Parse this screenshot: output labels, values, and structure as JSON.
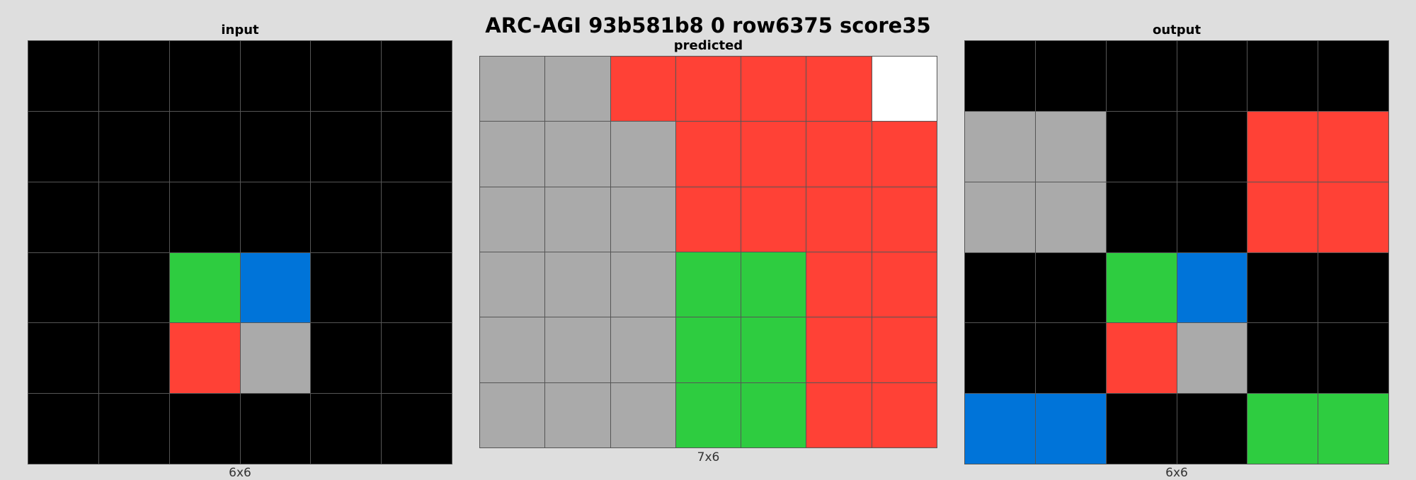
{
  "title": "ARC-AGI 93b581b8 0 row6375 score35",
  "palette": {
    "0": "#000000",
    "1": "#0074D9",
    "2": "#FF4136",
    "3": "#2ECC40",
    "4": "#FFDC00",
    "5": "#AAAAAA",
    "6": "#F012BE",
    "7": "#FF851B",
    "8": "#7FDBFF",
    "9": "#870C25",
    "w": "#FFFFFF"
  },
  "panels": {
    "input": {
      "title": "input",
      "dims": "6x6",
      "grid": [
        [
          "0",
          "0",
          "0",
          "0",
          "0",
          "0"
        ],
        [
          "0",
          "0",
          "0",
          "0",
          "0",
          "0"
        ],
        [
          "0",
          "0",
          "0",
          "0",
          "0",
          "0"
        ],
        [
          "0",
          "0",
          "3",
          "1",
          "0",
          "0"
        ],
        [
          "0",
          "0",
          "2",
          "5",
          "0",
          "0"
        ],
        [
          "0",
          "0",
          "0",
          "0",
          "0",
          "0"
        ]
      ]
    },
    "predicted": {
      "title": "predicted",
      "dims": "7x6",
      "grid": [
        [
          "5",
          "5",
          "2",
          "2",
          "2",
          "2",
          "w"
        ],
        [
          "5",
          "5",
          "5",
          "2",
          "2",
          "2",
          "2"
        ],
        [
          "5",
          "5",
          "5",
          "2",
          "2",
          "2",
          "2"
        ],
        [
          "5",
          "5",
          "5",
          "3",
          "3",
          "2",
          "2"
        ],
        [
          "5",
          "5",
          "5",
          "3",
          "3",
          "2",
          "2"
        ],
        [
          "5",
          "5",
          "5",
          "3",
          "3",
          "2",
          "2"
        ]
      ]
    },
    "output": {
      "title": "output",
      "dims": "6x6",
      "grid": [
        [
          "0",
          "0",
          "0",
          "0",
          "0",
          "0"
        ],
        [
          "5",
          "5",
          "0",
          "0",
          "2",
          "2"
        ],
        [
          "5",
          "5",
          "0",
          "0",
          "2",
          "2"
        ],
        [
          "0",
          "0",
          "3",
          "1",
          "0",
          "0"
        ],
        [
          "0",
          "0",
          "2",
          "5",
          "0",
          "0"
        ],
        [
          "1",
          "1",
          "0",
          "0",
          "3",
          "3"
        ]
      ]
    }
  }
}
